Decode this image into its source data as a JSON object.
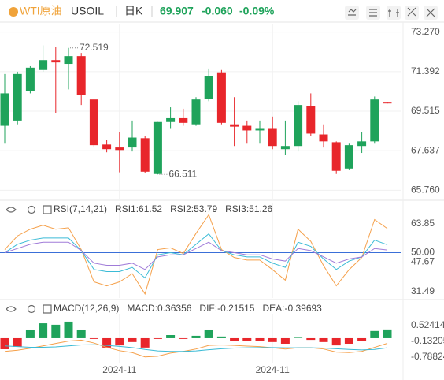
{
  "header": {
    "symbol_name": "WTI原油",
    "symbol_code": "USOIL",
    "period": "日K",
    "price": "69.907",
    "change": "-0.060",
    "change_pct": "-0.09%"
  },
  "chart_data": [
    {
      "type": "candlestick",
      "categories": [
        null,
        null,
        null,
        null,
        null,
        null,
        null,
        null,
        null,
        "2024-11",
        null,
        null,
        null,
        null,
        null,
        null,
        null,
        null,
        null,
        null,
        null,
        "2024-11",
        null,
        null,
        null,
        null,
        null,
        null,
        null,
        null,
        null
      ],
      "open": [
        68.82,
        69.07,
        70.47,
        71.47,
        71.94,
        71.76,
        72.13,
        70.07,
        67.93,
        67.79,
        67.79,
        68.23,
        66.53,
        69.0,
        69.18,
        68.89,
        70.1,
        71.36,
        68.89,
        68.82,
        68.6,
        68.71,
        67.71,
        67.86,
        69.74,
        68.41,
        68.04,
        66.79,
        67.86,
        68.08,
        69.92
      ],
      "high": [
        71.28,
        71.39,
        71.65,
        72.64,
        72.57,
        72.519,
        72.28,
        70.07,
        68.15,
        68.52,
        69.07,
        68.34,
        69.0,
        69.7,
        69.63,
        70.18,
        71.54,
        71.47,
        70.18,
        69.07,
        69.07,
        69.26,
        69.07,
        69.99,
        70.36,
        68.89,
        68.08,
        67.97,
        68.52,
        70.21,
        69.96
      ],
      "low": [
        67.97,
        68.89,
        70.36,
        71.39,
        69.44,
        70.55,
        69.81,
        67.79,
        67.56,
        66.61,
        67.6,
        66.57,
        66.511,
        68.71,
        68.82,
        68.82,
        69.99,
        68.89,
        67.86,
        67.97,
        67.97,
        67.71,
        67.42,
        67.6,
        68.34,
        67.79,
        66.53,
        66.75,
        67.53,
        67.97,
        69.88
      ],
      "close": [
        70.36,
        71.28,
        71.58,
        71.94,
        71.83,
        72.13,
        70.29,
        67.9,
        67.71,
        67.67,
        68.26,
        66.64,
        69.0,
        69.18,
        68.96,
        70.07,
        71.17,
        68.96,
        68.78,
        68.6,
        68.71,
        67.86,
        67.86,
        69.81,
        68.45,
        68.08,
        66.68,
        67.9,
        68.08,
        70.07,
        69.91
      ],
      "up_color": "#1fa35b",
      "down_color": "#e8262b",
      "annotations": [
        {
          "text": "72.519",
          "value": 72.519
        },
        {
          "text": "66.511",
          "value": 66.511
        }
      ],
      "ylim": [
        65.36,
        73.67
      ],
      "yticks": [
        {
          "value": 73.27,
          "label": "73.270"
        },
        {
          "value": 71.392,
          "label": "71.392"
        },
        {
          "value": 69.515,
          "label": "69.515"
        },
        {
          "value": 67.637,
          "label": "67.637"
        },
        {
          "value": 65.76,
          "label": "65.760"
        }
      ],
      "grid": true
    },
    {
      "type": "line",
      "label": "RSI(7,14,21)",
      "series": [
        {
          "name": "RSI1:61.52",
          "color": "#f5a04a",
          "values": [
            51.5,
            58.0,
            61.2,
            63.1,
            61.2,
            61.9,
            51.5,
            36.1,
            34.2,
            36.1,
            40.0,
            30.3,
            51.5,
            52.3,
            49.6,
            59.2,
            68.1,
            51.5,
            47.7,
            46.5,
            46.5,
            41.9,
            36.9,
            61.2,
            55.4,
            43.8,
            34.2,
            41.9,
            47.7,
            65.8,
            61.52
          ]
        },
        {
          "name": "RSI2:53.79",
          "color": "#3bbbd6",
          "values": [
            50,
            54,
            56,
            57,
            57,
            57,
            51,
            42,
            41,
            41,
            43,
            38,
            49,
            50,
            49,
            54,
            59,
            51,
            49,
            48,
            48,
            45,
            43,
            55,
            53,
            47,
            42,
            46,
            48,
            56,
            53.79
          ]
        },
        {
          "name": "RSI3:51.26",
          "color": "#a07bd8",
          "values": [
            50,
            52,
            54,
            55,
            55,
            55,
            51,
            45,
            44,
            44,
            45,
            42,
            48,
            49,
            49,
            52,
            55,
            51,
            50,
            49,
            49,
            47,
            46,
            52,
            51,
            48,
            45,
            47,
            48,
            52,
            51.26
          ]
        }
      ],
      "hline": 50,
      "hline_color": "#3a6fd8",
      "ylim": [
        28.4,
        73.5
      ],
      "yticks": [
        63.85,
        {
          "value": 50,
          "label": "50.00"
        },
        47.67,
        31.49
      ],
      "grid": false
    },
    {
      "type": "macd",
      "label": "MACD(12,26,9)",
      "histogram": {
        "name": "MACD:0.36356",
        "color": "#9b7fd4",
        "values": [
          -0.46,
          -0.36,
          0.36,
          0.62,
          0.56,
          0.69,
          0.36,
          -0.03,
          -0.39,
          -0.3,
          -0.16,
          -0.39,
          -0.03,
          0.13,
          -0.03,
          0.1,
          0.36,
          0.07,
          -0.1,
          -0.13,
          -0.1,
          -0.16,
          -0.23,
          0.02,
          -0.07,
          -0.16,
          -0.3,
          -0.23,
          -0.1,
          0.3,
          0.36356
        ]
      },
      "series": [
        {
          "name": "DIF:-0.21515",
          "color": "#f5a04a",
          "values": [
            -0.55,
            -0.5,
            -0.42,
            -0.32,
            -0.22,
            -0.12,
            -0.08,
            -0.2,
            -0.38,
            -0.52,
            -0.6,
            -0.78,
            -0.75,
            -0.62,
            -0.55,
            -0.45,
            -0.3,
            -0.28,
            -0.3,
            -0.33,
            -0.35,
            -0.4,
            -0.45,
            -0.4,
            -0.4,
            -0.45,
            -0.58,
            -0.6,
            -0.55,
            -0.38,
            -0.21515
          ]
        },
        {
          "name": "DEA:-0.39693",
          "color": "#3bbbd6",
          "values": [
            -0.32,
            -0.35,
            -0.38,
            -0.38,
            -0.36,
            -0.32,
            -0.28,
            -0.27,
            -0.3,
            -0.34,
            -0.39,
            -0.47,
            -0.53,
            -0.55,
            -0.55,
            -0.53,
            -0.48,
            -0.44,
            -0.41,
            -0.4,
            -0.39,
            -0.39,
            -0.4,
            -0.4,
            -0.4,
            -0.41,
            -0.44,
            -0.47,
            -0.49,
            -0.47,
            -0.39693
          ]
        }
      ],
      "up_color": "#1fa35b",
      "down_color": "#e8262b",
      "ylim": [
        -1.018,
        1.016
      ],
      "yticks": [
        0.52414,
        -0.13205,
        -0.78824
      ],
      "grid": false
    }
  ]
}
